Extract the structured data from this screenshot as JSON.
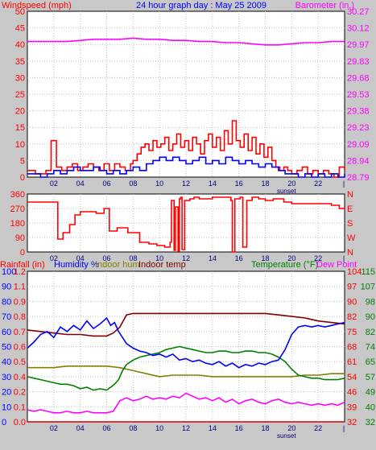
{
  "colors": {
    "background": "#c8c8c8",
    "plot_bg": "#ffffff",
    "grid": "#c0c0c0",
    "red": "#ff0000",
    "blue": "#0000ff",
    "magenta": "#ff00ff",
    "green": "#008000",
    "olive": "#808000",
    "maroon": "#800000",
    "dark_red": "#cc0000"
  },
  "chart_data": [
    {
      "type": "line",
      "title": "24 hour graph day : May 25 2009",
      "ylabel": "Windspeed (mph)",
      "y2label": "Barometer (in.)",
      "ylim": [
        0,
        50
      ],
      "y_ticks": [
        "0",
        "5",
        "10",
        "15",
        "20",
        "25",
        "30",
        "35",
        "40",
        "45",
        "50"
      ],
      "y2lim": [
        28.79,
        30.27
      ],
      "y2_ticks": [
        "28.79",
        "28.94",
        "29.09",
        "29.23",
        "29.38",
        "29.53",
        "29.68",
        "29.83",
        "29.97",
        "30.12",
        "30.27"
      ],
      "x_ticks": [
        "02",
        "04",
        "06",
        "08",
        "10",
        "12",
        "14",
        "16",
        "18",
        "20",
        "22"
      ],
      "x_marker": "sunset",
      "x_marker_hour": 19.6,
      "xlim": [
        0,
        24
      ],
      "series": [
        {
          "color": "#ff0000",
          "step": true,
          "x": [
            0,
            0.6,
            1.4,
            1.8,
            2.2,
            2.6,
            3.0,
            3.4,
            3.8,
            4.2,
            4.6,
            5.0,
            5.4,
            5.8,
            6.2,
            6.6,
            7.0,
            7.4,
            7.8,
            8.0,
            8.3,
            8.6,
            8.9,
            9.2,
            9.5,
            9.8,
            10.1,
            10.4,
            10.7,
            11.0,
            11.3,
            11.6,
            11.9,
            12.2,
            12.5,
            12.8,
            13.1,
            13.4,
            13.7,
            14.0,
            14.3,
            14.6,
            14.9,
            15.2,
            15.5,
            15.8,
            16.1,
            16.4,
            16.7,
            17.0,
            17.3,
            17.6,
            17.9,
            18.2,
            18.5,
            18.8,
            19.1,
            19.4,
            19.7,
            20.0,
            20.4,
            20.8,
            21.2,
            21.6,
            22.0,
            22.4,
            22.8,
            23.2,
            23.6,
            24
          ],
          "values": [
            2,
            1,
            2,
            11,
            3,
            2,
            3,
            4,
            2,
            3,
            4,
            3,
            2,
            4,
            2,
            4,
            3,
            2,
            4,
            5,
            7,
            9,
            10,
            8,
            11,
            9,
            10,
            12,
            8,
            10,
            13,
            9,
            11,
            8,
            12,
            10,
            7,
            11,
            13,
            9,
            12,
            8,
            14,
            10,
            17,
            11,
            9,
            13,
            8,
            12,
            7,
            10,
            6,
            9,
            5,
            3,
            2,
            3,
            2,
            1,
            2,
            3,
            1,
            2,
            1,
            2,
            1,
            0,
            3,
            2
          ]
        },
        {
          "color": "#0000ff",
          "step": true,
          "x": [
            0,
            0.5,
            1.0,
            1.5,
            2.0,
            2.5,
            3.0,
            3.5,
            4.0,
            4.5,
            5.0,
            5.5,
            6.0,
            6.5,
            7.0,
            7.5,
            8.0,
            8.5,
            9.0,
            9.5,
            10.0,
            10.5,
            11.0,
            11.5,
            12.0,
            12.5,
            13.0,
            13.5,
            14.0,
            14.5,
            15.0,
            15.5,
            16.0,
            16.5,
            17.0,
            17.5,
            18.0,
            18.5,
            19.0,
            19.5,
            20.0,
            20.5,
            21.0,
            21.5,
            22.0,
            22.5,
            23.0,
            23.5,
            24
          ],
          "values": [
            1,
            1,
            0,
            1,
            2,
            1,
            2,
            3,
            2,
            2,
            3,
            2,
            1,
            2,
            1,
            2,
            3,
            2,
            4,
            5,
            6,
            5,
            6,
            5,
            4,
            5,
            6,
            4,
            5,
            4,
            6,
            5,
            4,
            5,
            4,
            3,
            4,
            3,
            2,
            1,
            1,
            0,
            1,
            0,
            1,
            0,
            1,
            0,
            1
          ]
        },
        {
          "color": "#ff00ff",
          "axis": "right",
          "x": [
            0,
            1,
            2,
            3,
            4,
            5,
            6,
            7,
            8,
            9,
            10,
            11,
            12,
            13,
            14,
            15,
            16,
            17,
            18,
            19,
            20,
            21,
            22,
            23,
            24
          ],
          "values": [
            30.0,
            30.0,
            30.0,
            30.0,
            30.01,
            30.02,
            30.02,
            30.02,
            30.03,
            30.02,
            30.02,
            30.01,
            30.01,
            30.0,
            30.0,
            29.99,
            29.99,
            29.98,
            29.97,
            29.97,
            29.98,
            29.99,
            29.99,
            30.0,
            30.0
          ]
        }
      ]
    },
    {
      "type": "line",
      "ylabel": "",
      "y_ticks": [
        "0",
        "90",
        "180",
        "270",
        "360"
      ],
      "ylim": [
        0,
        360
      ],
      "y2_ticks": [
        "N",
        "W",
        "S",
        "E",
        "N"
      ],
      "x_ticks": [
        "02",
        "04",
        "06",
        "08",
        "10",
        "12",
        "14",
        "16",
        "18",
        "20",
        "22"
      ],
      "xlim": [
        0,
        24
      ],
      "series": [
        {
          "color": "#ff0000",
          "step": true,
          "x": [
            0,
            2.3,
            2.7,
            3.2,
            3.6,
            4.0,
            5.2,
            5.8,
            6.2,
            6.8,
            7.6,
            8.5,
            9.2,
            9.8,
            10.4,
            10.8,
            10.9,
            11.1,
            11.2,
            11.4,
            11.5,
            11.6,
            11.7,
            11.9,
            12.3,
            12.6,
            13.0,
            14.0,
            15.4,
            15.5,
            15.7,
            16.1,
            16.3,
            16.6,
            17.0,
            17.5,
            18.0,
            18.6,
            19.4,
            20.0,
            21.0,
            23.0,
            23.6,
            24
          ],
          "values": [
            310,
            80,
            120,
            170,
            230,
            250,
            240,
            270,
            130,
            150,
            120,
            60,
            50,
            40,
            30,
            60,
            320,
            10,
            280,
            5,
            330,
            340,
            15,
            320,
            330,
            340,
            330,
            340,
            320,
            0,
            330,
            340,
            30,
            320,
            340,
            330,
            320,
            330,
            310,
            300,
            300,
            290,
            270,
            280
          ]
        }
      ]
    },
    {
      "type": "line",
      "ylabel": "Rainfall (in)",
      "ylabel2": "Humidity %",
      "ylabel3": "Indoor hum",
      "ylabel4": "Indoor temp",
      "y2label": "Temperature (°F)",
      "y2label2": "Dew Point",
      "ylim": [
        0,
        100
      ],
      "y_ticks_rain": [
        "0.0",
        "0.1",
        "0.2",
        "0.4",
        "0.5",
        "0.6",
        "0.7",
        "0.8",
        "0.9",
        "1.1",
        "1.2"
      ],
      "y_ticks_hum": [
        "0",
        "10",
        "20",
        "30",
        "40",
        "50",
        "60",
        "70",
        "80",
        "90",
        "100"
      ],
      "y2_ticks_a": [
        "32",
        "39",
        "46",
        "54",
        "61",
        "68",
        "75",
        "82",
        "90",
        "97",
        "104"
      ],
      "y2_ticks_b": [
        "32",
        "40",
        "49",
        "57",
        "65",
        "74",
        "82",
        "90",
        "98",
        "107",
        "115"
      ],
      "x_ticks": [
        "02",
        "04",
        "06",
        "08",
        "10",
        "12",
        "14",
        "16",
        "18",
        "20",
        "22"
      ],
      "x_marker": "sunset",
      "x_marker_hour": 19.6,
      "xlim": [
        0,
        24
      ],
      "series": [
        {
          "color": "#0000ff",
          "x": [
            0,
            0.5,
            1,
            1.5,
            2,
            2.5,
            3,
            3.5,
            4,
            4.5,
            5,
            5.5,
            6,
            6.3,
            6.6,
            6.9,
            7.2,
            7.5,
            8,
            8.5,
            9,
            9.5,
            10,
            10.5,
            11,
            11.5,
            12,
            12.5,
            13,
            13.5,
            14,
            14.5,
            15,
            15.5,
            16,
            16.5,
            17,
            17.5,
            18,
            18.5,
            19,
            19.5,
            20,
            20.5,
            21,
            21.5,
            22,
            22.5,
            23,
            23.5,
            24
          ],
          "values": [
            49,
            53,
            58,
            60,
            56,
            63,
            60,
            64,
            61,
            67,
            62,
            65,
            69,
            64,
            66,
            60,
            56,
            52,
            49,
            47,
            46,
            44,
            45,
            43,
            45,
            41,
            42,
            40,
            41,
            39,
            38,
            40,
            37,
            39,
            36,
            38,
            37,
            39,
            38,
            40,
            41,
            48,
            58,
            63,
            64,
            63,
            64,
            63,
            64,
            65,
            66
          ]
        },
        {
          "color": "#008000",
          "x": [
            0,
            0.5,
            1,
            1.5,
            2,
            2.5,
            3,
            3.5,
            4,
            4.5,
            5,
            5.5,
            6,
            6.3,
            6.6,
            6.9,
            7.2,
            7.5,
            8,
            8.5,
            9,
            9.5,
            10,
            10.5,
            11,
            11.5,
            12,
            12.5,
            13,
            13.5,
            14,
            14.5,
            15,
            15.5,
            16,
            16.5,
            17,
            17.5,
            18,
            18.5,
            19,
            19.5,
            20,
            20.5,
            21,
            21.5,
            22,
            22.5,
            23,
            23.5,
            24
          ],
          "values": [
            30,
            29,
            28,
            27,
            26,
            25,
            25,
            24,
            22,
            23,
            21,
            22,
            21,
            23,
            25,
            28,
            34,
            38,
            41,
            43,
            44,
            45,
            46,
            48,
            49,
            50,
            49,
            48,
            47,
            46,
            46,
            47,
            47,
            46,
            46,
            47,
            47,
            46,
            46,
            45,
            43,
            40,
            35,
            31,
            30,
            29,
            29,
            28,
            28,
            28,
            29
          ]
        },
        {
          "color": "#808000",
          "x": [
            0,
            1,
            2,
            3,
            4,
            5,
            6,
            7,
            8,
            9,
            10,
            11,
            12,
            13,
            14,
            15,
            16,
            17,
            18,
            19,
            20,
            21,
            22,
            23,
            24
          ],
          "values": [
            36,
            36,
            36,
            37,
            37,
            37,
            37,
            36,
            34,
            32,
            30,
            31,
            31,
            31,
            30,
            30,
            30,
            30,
            30,
            30,
            30,
            31,
            31,
            32,
            32
          ]
        },
        {
          "color": "#800000",
          "x": [
            0,
            1,
            2,
            3,
            4,
            5,
            6,
            6.5,
            7,
            7.5,
            8,
            9,
            10,
            11,
            12,
            13,
            14,
            15,
            16,
            17,
            18,
            19,
            20,
            21,
            22,
            23,
            24
          ],
          "values": [
            61,
            60,
            59,
            58,
            58,
            57,
            57,
            59,
            63,
            71,
            72,
            72,
            72,
            72,
            72,
            72,
            72,
            72,
            72,
            72,
            72,
            71,
            70,
            69,
            67,
            66,
            65
          ]
        },
        {
          "color": "#ff00ff",
          "x": [
            0,
            0.5,
            1,
            1.5,
            2,
            2.5,
            3,
            3.5,
            4,
            4.5,
            5,
            5.5,
            6,
            6.5,
            7,
            7.5,
            8,
            8.5,
            9,
            9.5,
            10,
            10.5,
            11,
            11.5,
            12,
            12.5,
            13,
            13.5,
            14,
            14.5,
            15,
            15.5,
            16,
            16.5,
            17,
            17.5,
            18,
            18.5,
            19,
            19.5,
            20,
            20.5,
            21,
            21.5,
            22,
            22.5,
            23,
            23.5,
            24
          ],
          "values": [
            8,
            7,
            8,
            7,
            6,
            6,
            7,
            6,
            6,
            7,
            6,
            6,
            6,
            7,
            14,
            16,
            14,
            15,
            17,
            15,
            16,
            15,
            17,
            16,
            19,
            17,
            15,
            16,
            14,
            16,
            13,
            15,
            12,
            14,
            15,
            13,
            12,
            14,
            15,
            13,
            12,
            13,
            12,
            11,
            12,
            11,
            12,
            11,
            13
          ]
        },
        {
          "color": "#cc0000",
          "x": [
            0,
            24
          ],
          "values": [
            0,
            0
          ]
        }
      ]
    }
  ]
}
